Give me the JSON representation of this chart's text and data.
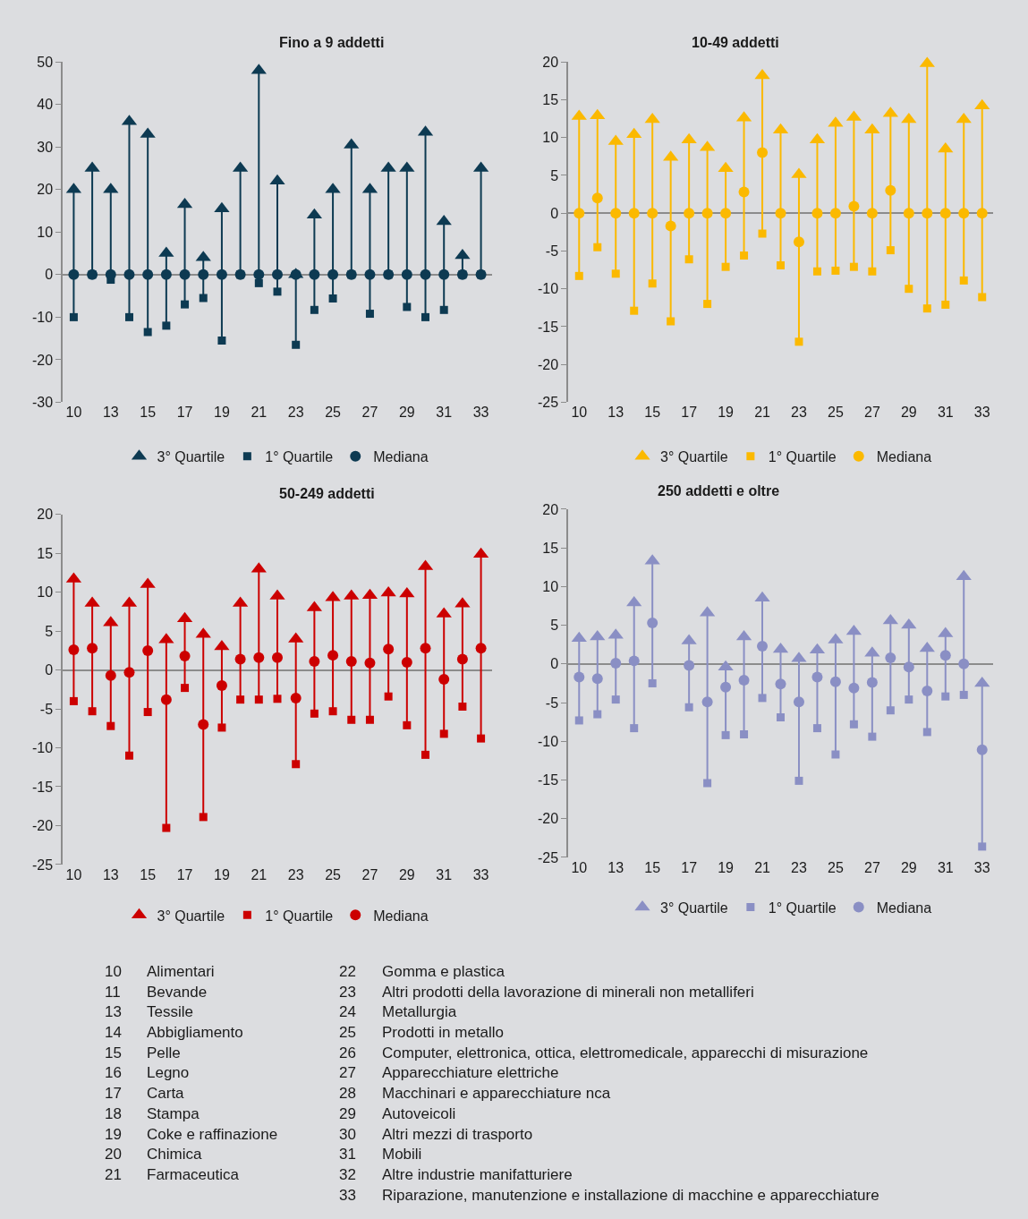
{
  "chart_data": [
    {
      "type": "scatter",
      "title": "Fino a 9 addetti",
      "categories": [
        "10",
        null,
        "13",
        null,
        "15",
        null,
        "17",
        null,
        "19",
        null,
        "21",
        null,
        "23",
        null,
        "25",
        null,
        "27",
        null,
        "29",
        null,
        "31",
        null,
        "33"
      ],
      "ylim": [
        -30,
        50
      ],
      "yticks": [
        -30,
        -20,
        -10,
        0,
        10,
        20,
        30,
        40,
        50
      ],
      "legend": "bottom",
      "series": [
        {
          "name": "3° Quartile",
          "color": "#0d3a52",
          "marker": "triangle",
          "values": [
            20,
            25,
            20,
            36,
            33,
            5,
            16.5,
            4,
            15.5,
            25,
            48,
            22,
            0,
            14,
            20,
            30.5,
            20,
            25,
            25,
            33.5,
            12.5,
            4.5,
            25
          ]
        },
        {
          "name": "1° Quartile",
          "color": "#0d3a52",
          "marker": "square",
          "values": [
            -10,
            0,
            -1.2,
            -10,
            -13.5,
            -12,
            -7,
            -5.5,
            -15.5,
            0,
            -2,
            -4,
            -16.5,
            -8.3,
            -5.6,
            0,
            -9.2,
            0,
            -7.6,
            -10,
            -8.3,
            0,
            0
          ]
        },
        {
          "name": "Mediana",
          "color": "#0d3a52",
          "marker": "circle",
          "values": [
            0,
            0,
            0,
            0,
            0,
            0,
            0,
            0,
            0,
            0,
            0,
            0,
            0,
            0,
            0,
            0,
            0,
            0,
            0,
            0,
            0,
            0,
            0
          ]
        }
      ]
    },
    {
      "type": "scatter",
      "title": "10-49 addetti",
      "categories": [
        "10",
        null,
        "13",
        null,
        "15",
        null,
        "17",
        null,
        "19",
        null,
        "21",
        null,
        "23",
        null,
        "25",
        null,
        "27",
        null,
        "29",
        null,
        "31",
        null,
        "33"
      ],
      "ylim": [
        -25,
        20
      ],
      "yticks": [
        -25,
        -20,
        -15,
        -10,
        -5,
        0,
        5,
        10,
        15,
        20
      ],
      "legend": "bottom",
      "series": [
        {
          "name": "3° Quartile",
          "color": "#fbb900",
          "marker": "triangle",
          "values": [
            12.8,
            12.9,
            9.5,
            10.4,
            12.4,
            7.4,
            9.7,
            8.7,
            5.9,
            12.6,
            18.2,
            11,
            5.1,
            9.7,
            11.9,
            12.7,
            11,
            13.2,
            12.4,
            19.8,
            8.5,
            12.4,
            14.2
          ]
        },
        {
          "name": "1° Quartile",
          "color": "#fbb900",
          "marker": "square",
          "values": [
            -8.3,
            -4.5,
            -8,
            -12.9,
            -9.3,
            -14.3,
            -6.1,
            -12,
            -7.1,
            -5.6,
            -2.7,
            -6.9,
            -17,
            -7.7,
            -7.6,
            -7.1,
            -7.7,
            -4.9,
            -10,
            -12.6,
            -12.1,
            -8.9,
            -11.1
          ]
        },
        {
          "name": "Mediana",
          "color": "#fbb900",
          "marker": "circle",
          "values": [
            0,
            2,
            0,
            0,
            0,
            -1.7,
            0,
            0,
            0,
            2.8,
            8,
            0,
            -3.8,
            0,
            0,
            0.9,
            0,
            3,
            0,
            0,
            0,
            0,
            0
          ]
        }
      ]
    },
    {
      "type": "scatter",
      "title": "50-249 addetti",
      "categories": [
        "10",
        null,
        "13",
        null,
        "15",
        null,
        "17",
        null,
        "19",
        null,
        "21",
        null,
        "23",
        null,
        "25",
        null,
        "27",
        null,
        "29",
        null,
        "31",
        null,
        "33"
      ],
      "ylim": [
        -25,
        20
      ],
      "yticks": [
        -25,
        -20,
        -15,
        -10,
        -5,
        0,
        5,
        10,
        15,
        20
      ],
      "legend": "bottom",
      "series": [
        {
          "name": "3° Quartile",
          "color": "#cc0000",
          "marker": "triangle",
          "values": [
            11.7,
            8.6,
            6.1,
            8.6,
            11,
            3.9,
            6.6,
            4.6,
            3,
            8.6,
            13,
            9.5,
            4,
            8,
            9.3,
            9.5,
            9.6,
            9.9,
            9.8,
            13.3,
            7.2,
            8.5,
            14.9
          ]
        },
        {
          "name": "1° Quartile",
          "color": "#cc0000",
          "marker": "square",
          "values": [
            -4,
            -5.3,
            -7.2,
            -11,
            -5.4,
            -20.3,
            -2.3,
            -18.9,
            -7.4,
            -3.8,
            -3.8,
            -3.7,
            -12.1,
            -5.6,
            -5.3,
            -6.4,
            -6.4,
            -3.4,
            -7.1,
            -10.9,
            -8.2,
            -4.7,
            -8.8
          ]
        },
        {
          "name": "Mediana",
          "color": "#cc0000",
          "marker": "circle",
          "values": [
            2.6,
            2.8,
            -0.7,
            -0.3,
            2.5,
            -3.8,
            1.8,
            -7,
            -2,
            1.4,
            1.6,
            1.6,
            -3.6,
            1.1,
            1.9,
            1.1,
            0.9,
            2.7,
            1,
            2.8,
            -1.2,
            1.4,
            2.8
          ]
        }
      ]
    },
    {
      "type": "scatter",
      "title": "250 addetti e oltre",
      "categories": [
        "10",
        null,
        "13",
        null,
        "15",
        null,
        "17",
        null,
        "19",
        null,
        "21",
        null,
        "23",
        null,
        "25",
        null,
        "27",
        null,
        "29",
        null,
        "31",
        null,
        "33"
      ],
      "ylim": [
        -25,
        20
      ],
      "yticks": [
        -25,
        -20,
        -15,
        -10,
        -5,
        0,
        5,
        10,
        15,
        20
      ],
      "legend": "bottom",
      "series": [
        {
          "name": "3° Quartile",
          "color": "#8a8fc4",
          "marker": "triangle",
          "values": [
            3.3,
            3.5,
            3.7,
            7.9,
            13.3,
            null,
            3,
            6.6,
            -0.4,
            3.5,
            8.5,
            1.9,
            0.7,
            1.8,
            3.1,
            4.2,
            1.4,
            5.6,
            5,
            2,
            3.9,
            11.3,
            -2.5
          ]
        },
        {
          "name": "1° Quartile",
          "color": "#8a8fc4",
          "marker": "square",
          "values": [
            -7.3,
            -6.5,
            -4.6,
            -8.3,
            -2.5,
            null,
            -5.6,
            -15.4,
            -9.2,
            -9.1,
            -4.4,
            -6.9,
            -15.1,
            -8.3,
            -11.7,
            -7.8,
            -9.4,
            -6,
            -4.6,
            -8.8,
            -4.2,
            -4,
            -23.6
          ]
        },
        {
          "name": "Mediana",
          "color": "#8a8fc4",
          "marker": "circle",
          "values": [
            -1.7,
            -1.9,
            0.1,
            0.4,
            5.3,
            null,
            -0.2,
            -4.9,
            -3,
            -2.1,
            2.3,
            -2.6,
            -4.9,
            -1.7,
            -2.3,
            -3.1,
            -2.4,
            0.8,
            -0.4,
            -3.5,
            1.1,
            0,
            -11.1
          ]
        }
      ],
      "annotations": [
        "10 Alimentari",
        "11 Bevande",
        "13 Tessile",
        "14 Abbigliamento",
        "15 Pelle",
        "16 Legno",
        "17 Carta",
        "18 Stampa",
        "19 Coke e raffinazione",
        "20 Chimica",
        "21 Farmaceutica",
        "22 Gomma e plastica",
        "23 Altri prodotti della lavorazione di minerali non metalliferi",
        "24 Metallurgia",
        "25 Prodotti in metallo",
        "26 Computer, elettronica, ottica, elettromedicale, apparecchi di misurazione",
        "27 Apparecchiature elettriche",
        "28 Macchinari e apparecchiature nca",
        "29 Autoveicoli",
        "30 Altri mezzi di trasporto",
        "31 Mobili",
        "32 Altre industrie manifatturiere",
        "33 Riparazione, manutenzione e installazione di macchine e apparecchiature"
      ]
    }
  ]
}
